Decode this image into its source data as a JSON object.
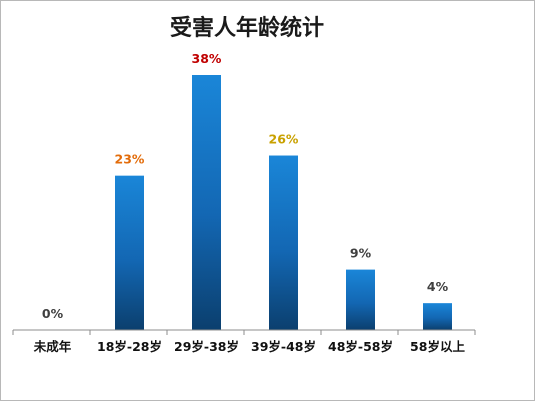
{
  "chart_data": {
    "type": "bar",
    "title": "受害人年龄统计",
    "xlabel": "",
    "ylabel": "",
    "categories": [
      "未成年",
      "18岁-28岁",
      "29岁-38岁",
      "39岁-48岁",
      "48岁-58岁",
      "58岁以上"
    ],
    "values": [
      0,
      23,
      38,
      26,
      9,
      4
    ],
    "data_labels": [
      "0%",
      "23%",
      "38%",
      "26%",
      "9%",
      "4%"
    ],
    "label_colors": [
      "#404040",
      "#e36c0a",
      "#c00000",
      "#c9a100",
      "#404040",
      "#404040"
    ],
    "ylim": [
      0,
      38
    ],
    "grid": false,
    "legend": "none",
    "bar_color_top": "#1a86d8",
    "bar_color_bottom": "#0b3f6e"
  }
}
